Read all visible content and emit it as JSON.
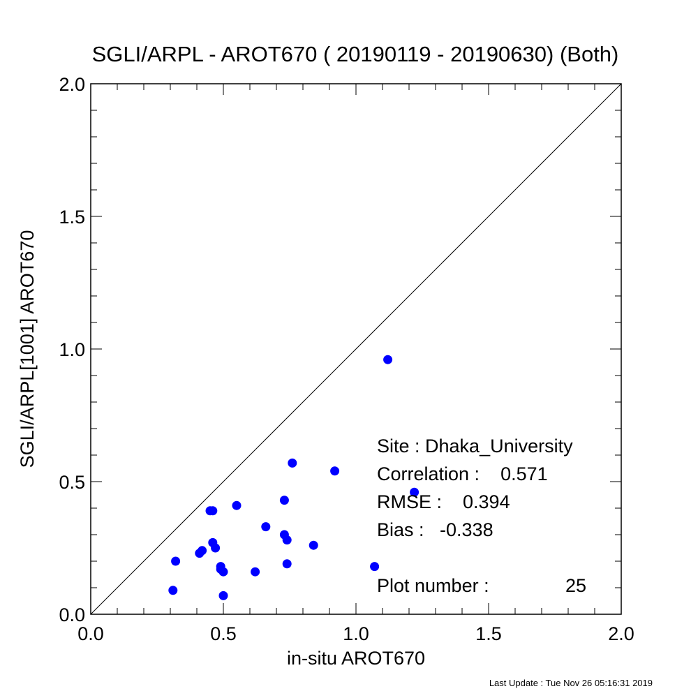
{
  "chart_data": {
    "type": "scatter",
    "title": "SGLI/ARPL - AROT670 ( 20190119 - 20190630) (Both)",
    "xlabel": "in-situ AROT670",
    "ylabel": "SGLI/ARPL[1001]    AROT670",
    "xlim": [
      0.0,
      2.0
    ],
    "ylim": [
      0.0,
      2.0
    ],
    "x_ticks": [
      "0.0",
      "0.5",
      "1.0",
      "1.5",
      "2.0"
    ],
    "y_ticks": [
      "0.0",
      "0.5",
      "1.0",
      "1.5",
      "2.0"
    ],
    "reference_line": "1:1",
    "grid": false,
    "marker_color": "#0000ff",
    "points": [
      {
        "x": 0.31,
        "y": 0.09
      },
      {
        "x": 0.32,
        "y": 0.2
      },
      {
        "x": 0.41,
        "y": 0.23
      },
      {
        "x": 0.42,
        "y": 0.24
      },
      {
        "x": 0.45,
        "y": 0.39
      },
      {
        "x": 0.46,
        "y": 0.39
      },
      {
        "x": 0.46,
        "y": 0.27
      },
      {
        "x": 0.47,
        "y": 0.25
      },
      {
        "x": 0.49,
        "y": 0.18
      },
      {
        "x": 0.49,
        "y": 0.17
      },
      {
        "x": 0.5,
        "y": 0.16
      },
      {
        "x": 0.5,
        "y": 0.07
      },
      {
        "x": 0.55,
        "y": 0.41
      },
      {
        "x": 0.62,
        "y": 0.16
      },
      {
        "x": 0.66,
        "y": 0.33
      },
      {
        "x": 0.73,
        "y": 0.43
      },
      {
        "x": 0.73,
        "y": 0.3
      },
      {
        "x": 0.74,
        "y": 0.28
      },
      {
        "x": 0.74,
        "y": 0.19
      },
      {
        "x": 0.76,
        "y": 0.57
      },
      {
        "x": 0.84,
        "y": 0.26
      },
      {
        "x": 0.92,
        "y": 0.54
      },
      {
        "x": 1.07,
        "y": 0.18
      },
      {
        "x": 1.12,
        "y": 0.96
      },
      {
        "x": 1.22,
        "y": 0.46
      }
    ],
    "stats": {
      "site": "Site : Dhaka_University",
      "correlation": "Correlation :    0.571",
      "rmse": "RMSE :    0.394",
      "bias": "Bias :   -0.338",
      "plot_number": "Plot number :",
      "plot_number_value": "25"
    }
  },
  "footer": "Last Update : Tue Nov 26 05:16:31 2019"
}
